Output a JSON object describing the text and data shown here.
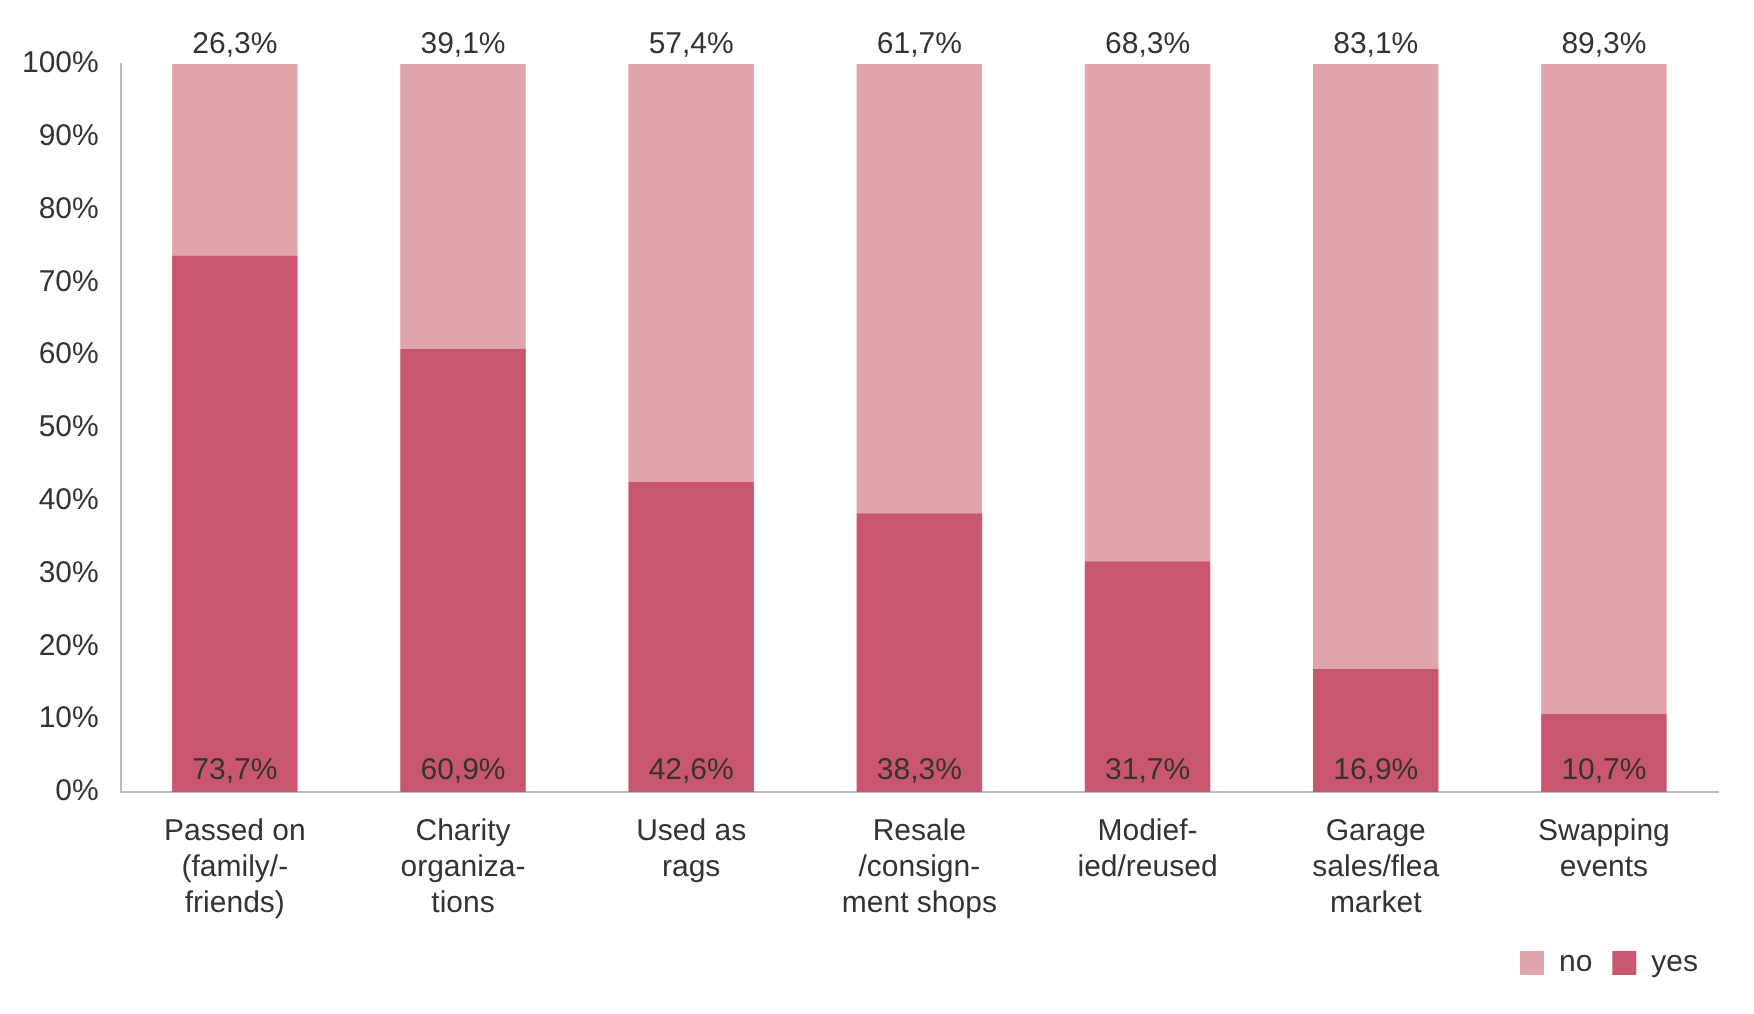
{
  "chart_data": {
    "type": "bar",
    "stacked": true,
    "categories": [
      "Passed on\n(family/-\nfriends)",
      "Charity\norganiza-\ntions",
      "Used as\nrags",
      "Resale\n/consign-\nment shops",
      "Modief-\nied/reused",
      "Garage\nsales/flea\nmarket",
      "Swapping\nevents"
    ],
    "series": [
      {
        "name": "yes",
        "color": "#c9566f",
        "values": [
          73.7,
          60.9,
          42.6,
          38.3,
          31.7,
          16.9,
          10.7
        ],
        "value_labels": [
          "73,7%",
          "60,9%",
          "42,6%",
          "38,3%",
          "31,7%",
          "16,9%",
          "10,7%"
        ]
      },
      {
        "name": "no",
        "color": "#e0a4ac",
        "values": [
          26.3,
          39.1,
          57.4,
          61.7,
          68.3,
          83.1,
          89.3
        ],
        "value_labels": [
          "26,3%",
          "39,1%",
          "57,4%",
          "61,7%",
          "68,3%",
          "83,1%",
          "89,3%"
        ]
      }
    ],
    "ylim": [
      0,
      100
    ],
    "yticks": [
      {
        "value": 0,
        "label": "0%"
      },
      {
        "value": 10,
        "label": "10%"
      },
      {
        "value": 20,
        "label": "20%"
      },
      {
        "value": 30,
        "label": "30%"
      },
      {
        "value": 40,
        "label": "40%"
      },
      {
        "value": 50,
        "label": "50%"
      },
      {
        "value": 60,
        "label": "60%"
      },
      {
        "value": 70,
        "label": "70%"
      },
      {
        "value": 80,
        "label": "80%"
      },
      {
        "value": 90,
        "label": "90%"
      },
      {
        "value": 100,
        "label": "100%"
      }
    ],
    "grid": false,
    "legend": "bottom right"
  }
}
